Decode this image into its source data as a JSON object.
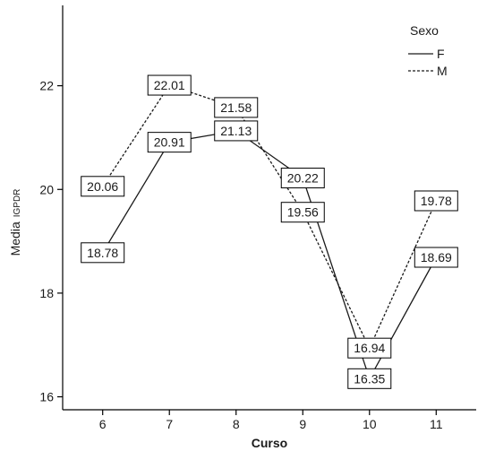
{
  "chart_data": {
    "type": "line",
    "x": [
      6,
      7,
      8,
      9,
      10,
      11
    ],
    "xlabel": "Curso",
    "ylabel": "Media",
    "ylabel_sub": "IGPDR",
    "xlim": [
      5.4,
      11.6
    ],
    "ylim": [
      15.75,
      23.55
    ],
    "y_ticks": [
      16,
      18,
      20,
      22
    ],
    "x_ticks": [
      6,
      7,
      8,
      9,
      10,
      11
    ],
    "grid": false,
    "legend": {
      "title": "Sexo",
      "placement": "top-right"
    },
    "series": [
      {
        "name": "F",
        "style": "solid",
        "values": [
          18.78,
          20.91,
          21.13,
          20.22,
          16.35,
          18.69
        ],
        "labels": [
          "18.78",
          "20.91",
          "21.13",
          "20.22",
          "16.35",
          "18.69"
        ]
      },
      {
        "name": "M",
        "style": "dashed",
        "values": [
          20.06,
          22.01,
          21.58,
          19.56,
          16.94,
          19.78
        ],
        "labels": [
          "20.06",
          "22.01",
          "21.58",
          "19.56",
          "16.94",
          "19.78"
        ]
      }
    ],
    "colors": {
      "line": "#1a1a1a",
      "axis": "#000000",
      "label_border": "#000000",
      "label_fill": "#ffffff"
    }
  }
}
